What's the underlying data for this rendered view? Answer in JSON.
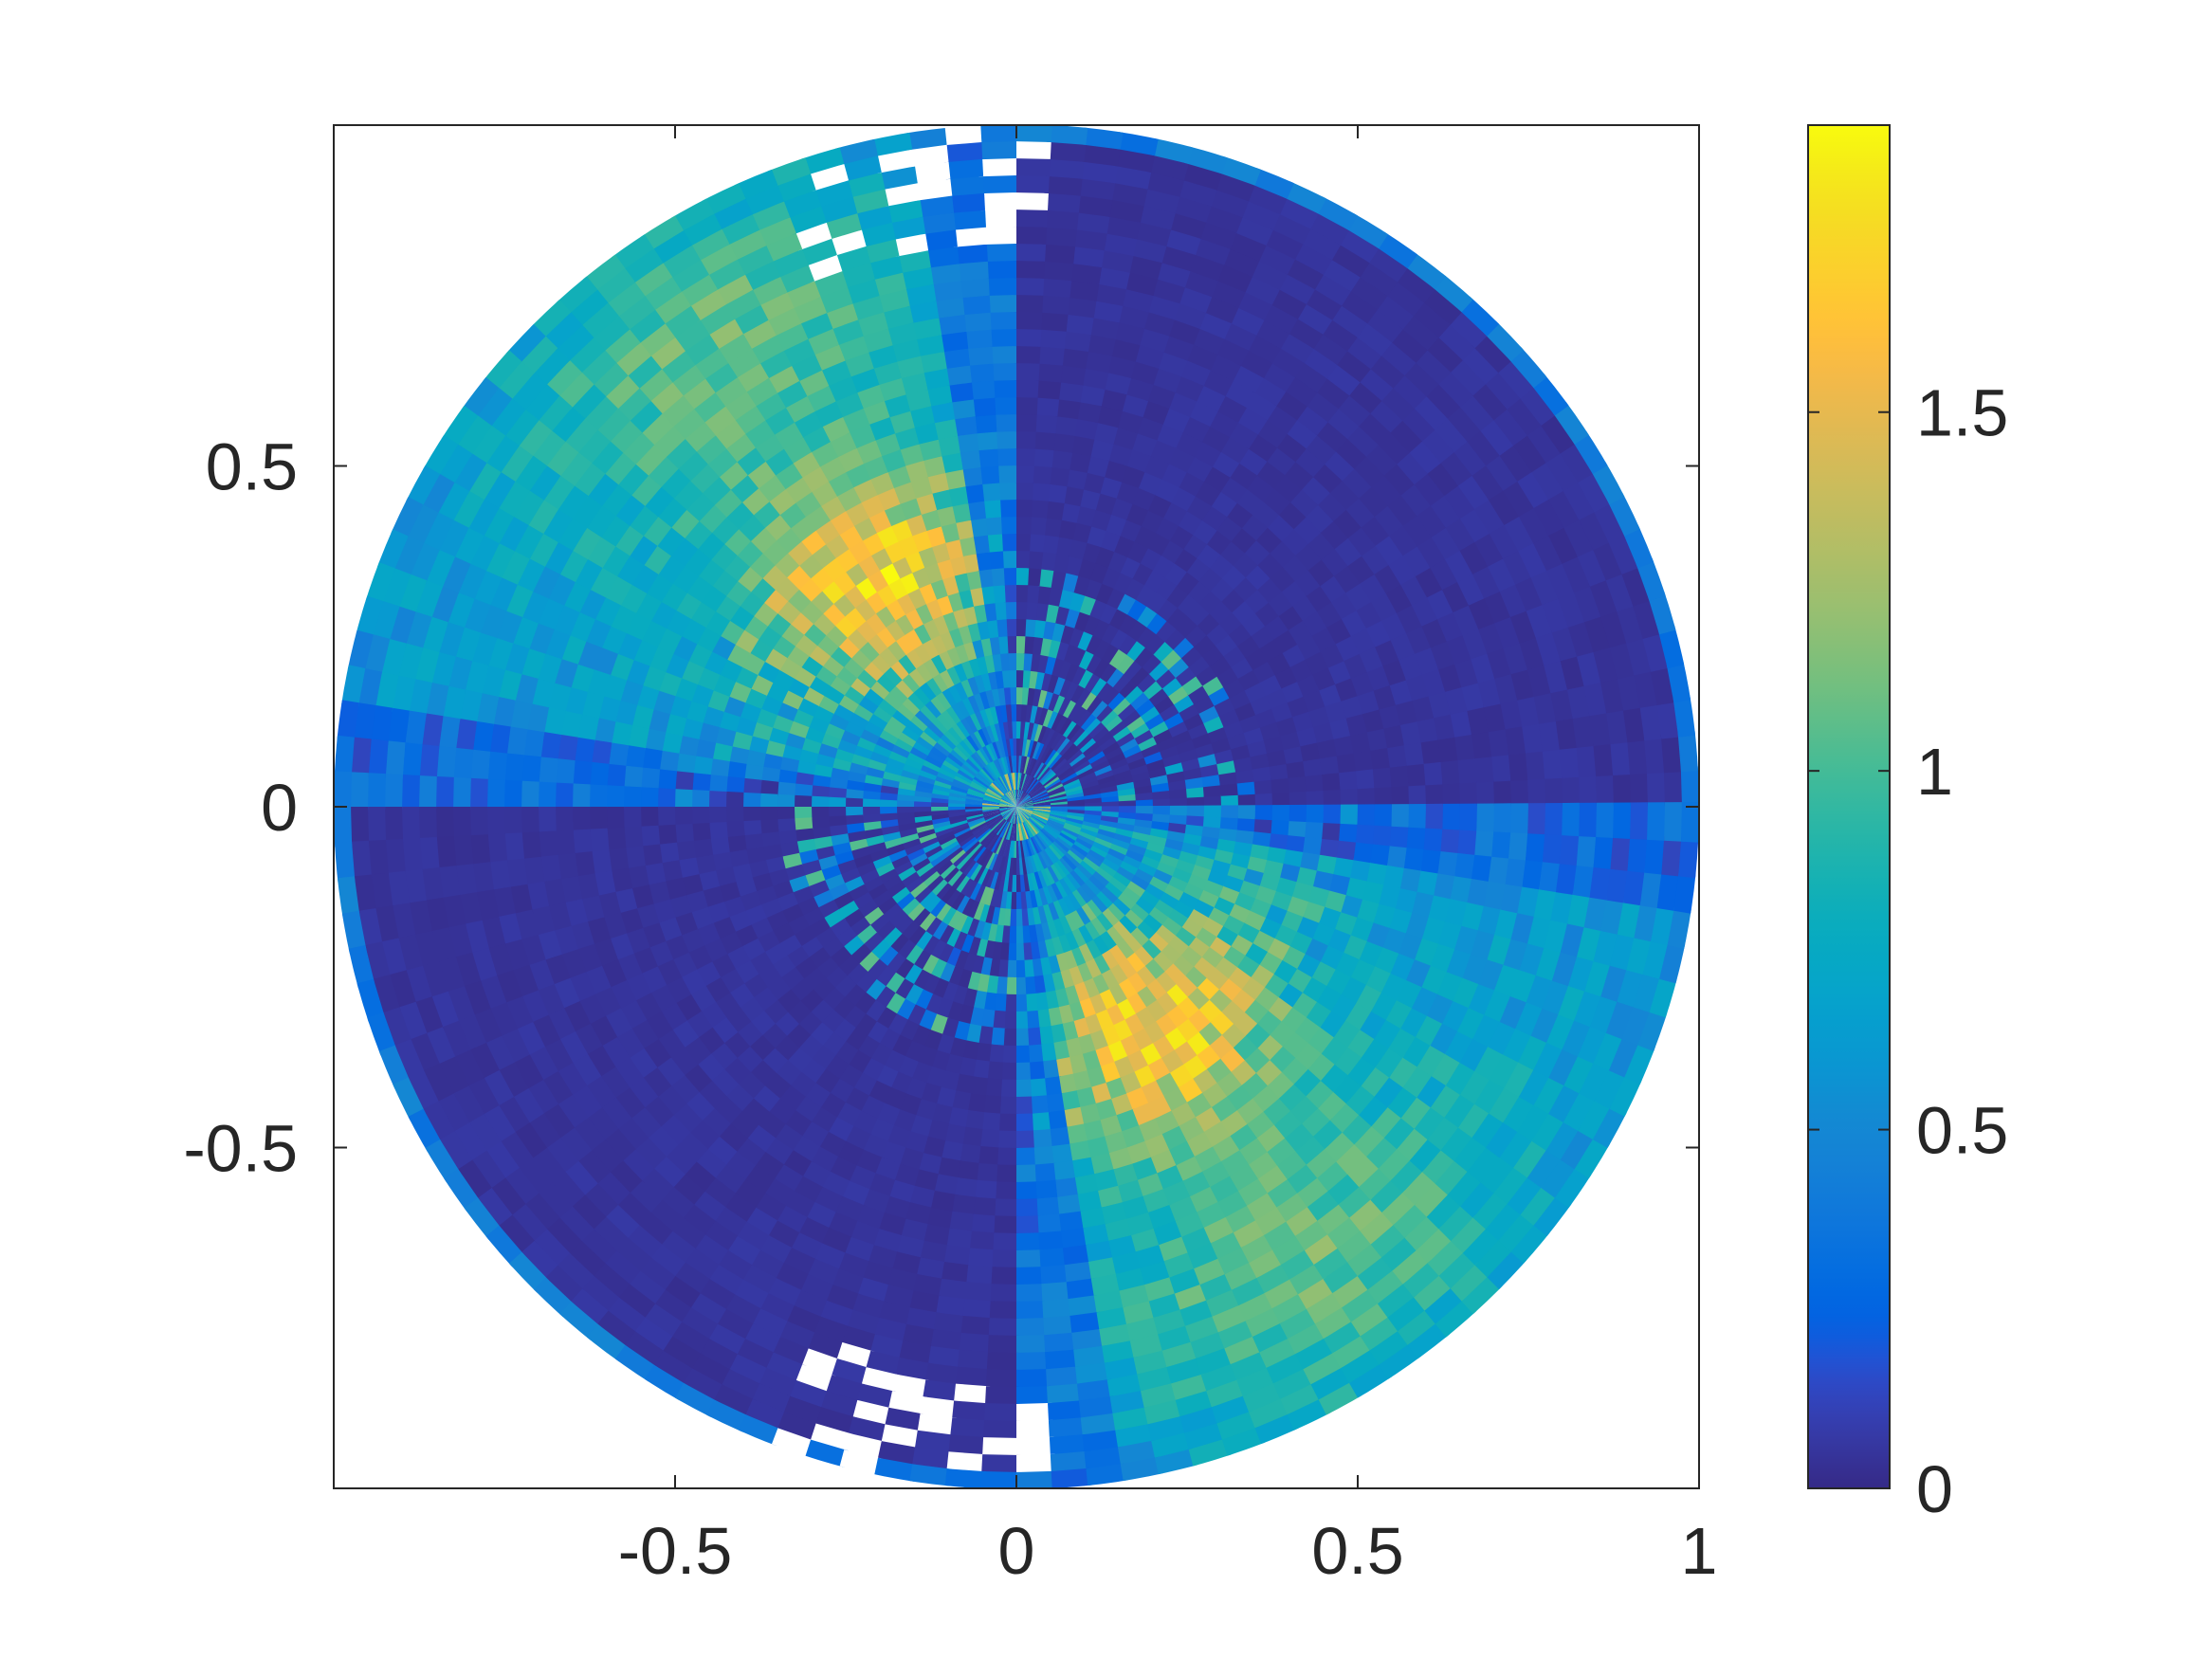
{
  "chart_data": {
    "type": "heatmap",
    "subtype": "polar-pseudocolor",
    "title": "",
    "xlabel": "",
    "ylabel": "",
    "xlim": [
      -1,
      1
    ],
    "ylim": [
      -1,
      1
    ],
    "grid": false,
    "box": true,
    "aspect": "equal",
    "x_ticks": [
      -0.5,
      0,
      0.5,
      1
    ],
    "x_tick_labels": [
      "-0.5",
      "0",
      "0.5",
      "1"
    ],
    "y_ticks": [
      -0.5,
      0,
      0.5
    ],
    "y_tick_labels": [
      "-0.5",
      "0",
      "0.5"
    ],
    "colorbar": {
      "location": "right",
      "colormap": "parula",
      "clim": [
        0,
        1.9
      ],
      "ticks": [
        0,
        0.5,
        1,
        1.5
      ],
      "tick_labels": [
        "0",
        "0.5",
        "1",
        "1.5"
      ]
    },
    "field": {
      "domain": "unit disk centered at (0,0), radius 1",
      "radial_bins": 40,
      "angular_bins": 120,
      "sectors": [
        {
          "theta_deg": [
            0,
            90
          ],
          "description": "near zero (dark blue)"
        },
        {
          "theta_deg": [
            90,
            180
          ],
          "description": "0.5 to 1.8, highest near theta 110-130 and r 0.3-0.5"
        },
        {
          "theta_deg": [
            180,
            270
          ],
          "description": "near zero (dark blue), blue speckle near theta 260-270"
        },
        {
          "theta_deg": [
            270,
            360
          ],
          "description": "0.5 to 1.8, highest near theta 290-310 and r 0.3-0.5"
        }
      ],
      "nan_patches": "white gaps near outer rim at theta about 95 and 265 degrees"
    }
  }
}
